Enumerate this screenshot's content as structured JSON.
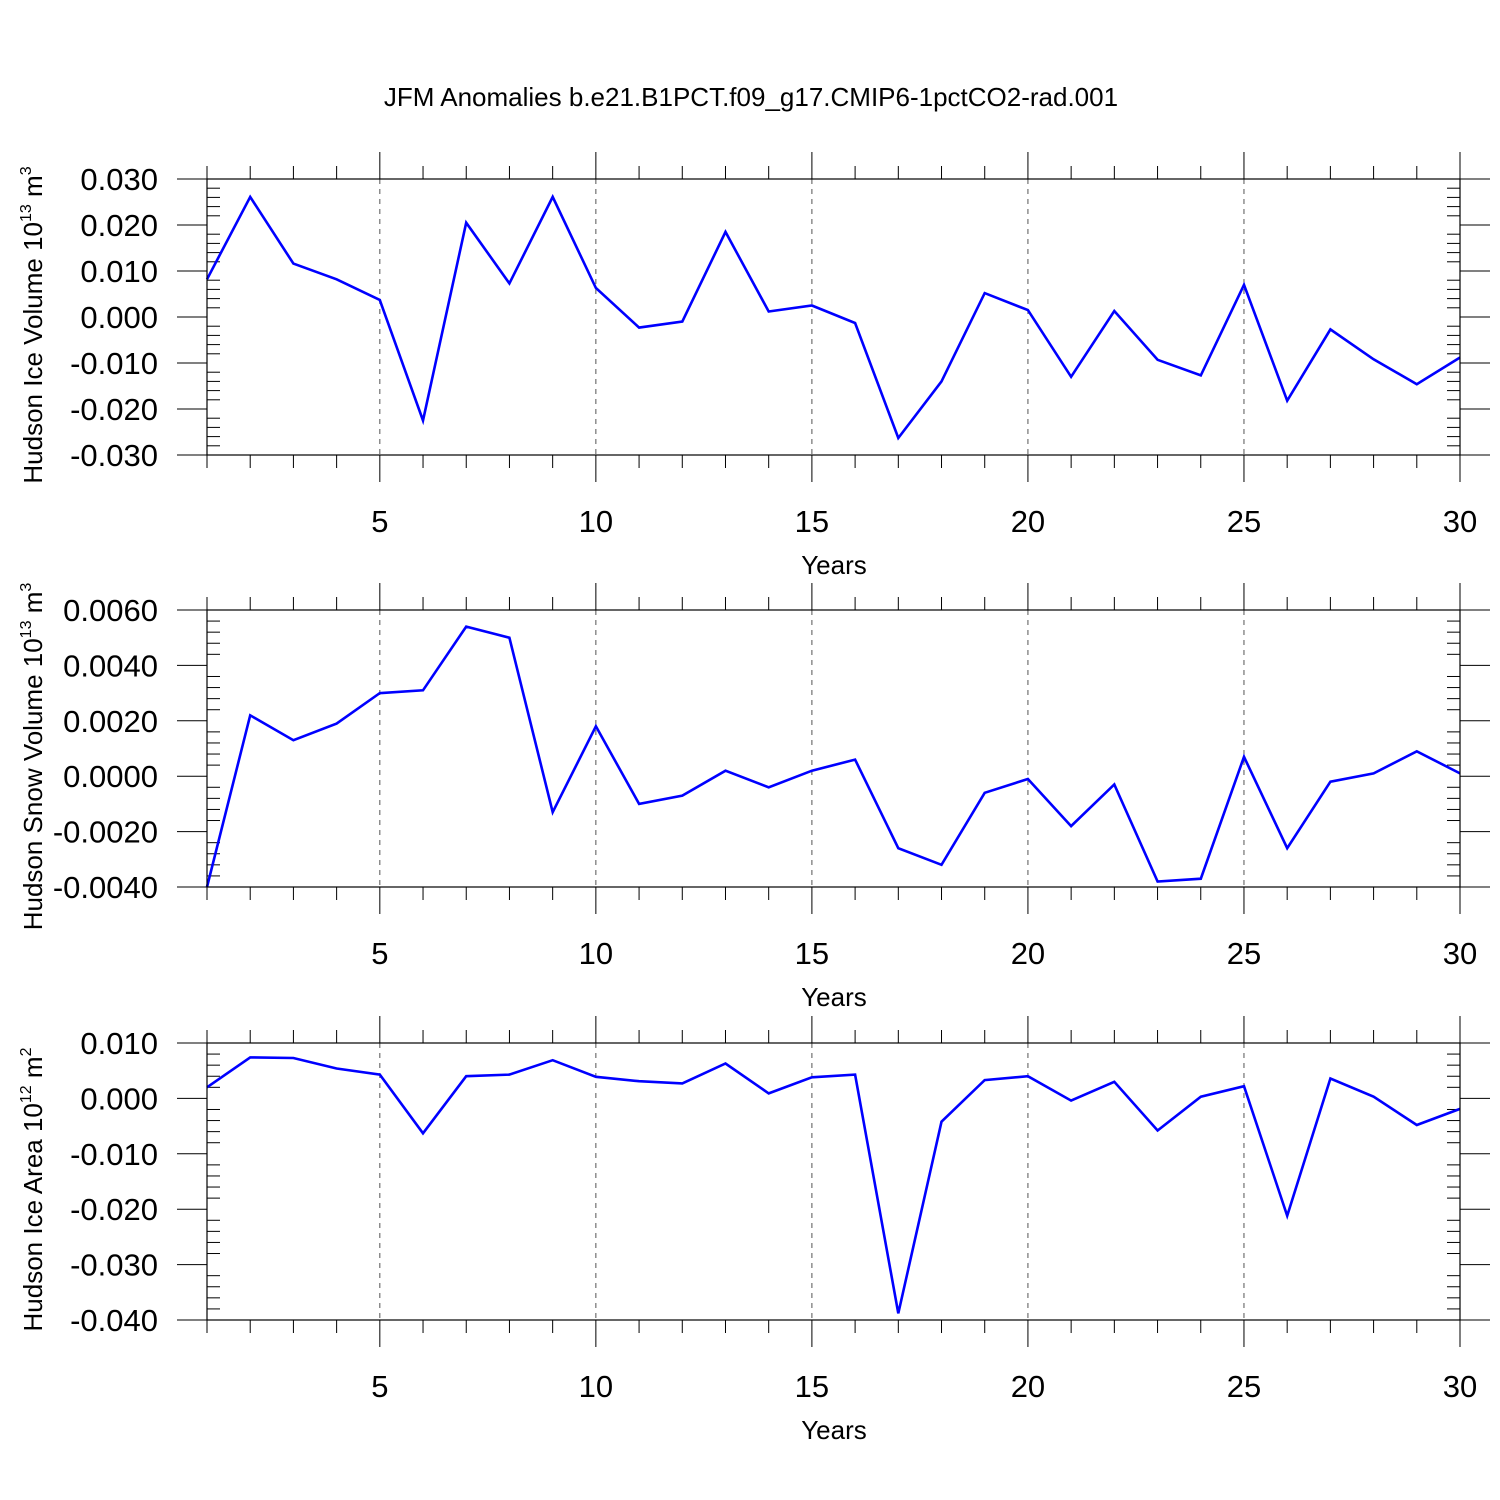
{
  "figure": {
    "title": "JFM Anomalies b.e21.B1PCT.f09_g17.CMIP6-1pctCO2-rad.001"
  },
  "chart_data": [
    {
      "type": "line",
      "xlabel": "Years",
      "ylabel": "Hudson Ice Volume 10",
      "ylabel_exponent": "13",
      "ylabel_unit": "m",
      "ylabel_unit_exponent": "3",
      "xlim": [
        1,
        30
      ],
      "ylim": [
        -0.03,
        0.03
      ],
      "x_ticks": [
        "5",
        "10",
        "15",
        "20",
        "25",
        "30"
      ],
      "x_tick_values": [
        5,
        10,
        15,
        20,
        25,
        30
      ],
      "y_ticks": [
        "0.030",
        "0.020",
        "0.010",
        "0.000",
        "-0.010",
        "-0.020",
        "-0.030"
      ],
      "y_tick_values": [
        0.03,
        0.02,
        0.01,
        0.0,
        -0.01,
        -0.02,
        -0.03
      ],
      "y_minor_step": 0.002,
      "x_grid": true,
      "color": "#0000ff",
      "x": [
        1,
        2,
        3,
        4,
        5,
        6,
        7,
        8,
        9,
        10,
        11,
        12,
        13,
        14,
        15,
        16,
        17,
        18,
        19,
        20,
        21,
        22,
        23,
        24,
        25,
        26,
        27,
        28,
        29,
        30
      ],
      "values": [
        0.0082,
        0.0261,
        0.0116,
        0.0082,
        0.0037,
        -0.0225,
        0.0205,
        0.0073,
        0.0261,
        0.0063,
        -0.0023,
        -0.001,
        0.0185,
        0.0012,
        0.0025,
        -0.0013,
        -0.0263,
        -0.014,
        0.0052,
        0.0015,
        -0.013,
        0.0013,
        -0.0093,
        -0.0127,
        0.007,
        -0.0182,
        -0.0027,
        -0.0092,
        -0.0146,
        -0.0088
      ]
    },
    {
      "type": "line",
      "xlabel": "Years",
      "ylabel": "Hudson Snow Volume 10",
      "ylabel_exponent": "13",
      "ylabel_unit": "m",
      "ylabel_unit_exponent": "3",
      "xlim": [
        1,
        30
      ],
      "ylim": [
        -0.004,
        0.006
      ],
      "x_ticks": [
        "5",
        "10",
        "15",
        "20",
        "25",
        "30"
      ],
      "x_tick_values": [
        5,
        10,
        15,
        20,
        25,
        30
      ],
      "y_ticks": [
        "0.0060",
        "0.0040",
        "0.0020",
        "0.0000",
        "-0.0020",
        "-0.0040"
      ],
      "y_tick_values": [
        0.006,
        0.004,
        0.002,
        0.0,
        -0.002,
        -0.004
      ],
      "y_minor_step": 0.0004,
      "x_grid": true,
      "color": "#0000ff",
      "x": [
        1,
        2,
        3,
        4,
        5,
        6,
        7,
        8,
        9,
        10,
        11,
        12,
        13,
        14,
        15,
        16,
        17,
        18,
        19,
        20,
        21,
        22,
        23,
        24,
        25,
        26,
        27,
        28,
        29,
        30
      ],
      "values": [
        -0.004,
        0.0022,
        0.0013,
        0.0019,
        0.003,
        0.0031,
        0.0054,
        0.005,
        -0.0013,
        0.0018,
        -0.001,
        -0.0007,
        0.0002,
        -0.0004,
        0.0002,
        0.0006,
        -0.0026,
        -0.0032,
        -0.0006,
        -0.0001,
        -0.0018,
        -0.0003,
        -0.0038,
        -0.0037,
        0.0007,
        -0.0026,
        -0.0002,
        0.0001,
        0.0009,
        0.0001
      ]
    },
    {
      "type": "line",
      "xlabel": "Years",
      "ylabel": "Hudson Ice Area 10",
      "ylabel_exponent": "12",
      "ylabel_unit": "m",
      "ylabel_unit_exponent": "2",
      "xlim": [
        1,
        30
      ],
      "ylim": [
        -0.04,
        0.01
      ],
      "x_ticks": [
        "5",
        "10",
        "15",
        "20",
        "25",
        "30"
      ],
      "x_tick_values": [
        5,
        10,
        15,
        20,
        25,
        30
      ],
      "y_ticks": [
        "0.010",
        "0.000",
        "-0.010",
        "-0.020",
        "-0.030",
        "-0.040"
      ],
      "y_tick_values": [
        0.01,
        0.0,
        -0.01,
        -0.02,
        -0.03,
        -0.04
      ],
      "y_minor_step": 0.002,
      "x_grid": true,
      "color": "#0000ff",
      "x": [
        1,
        2,
        3,
        4,
        5,
        6,
        7,
        8,
        9,
        10,
        11,
        12,
        13,
        14,
        15,
        16,
        17,
        18,
        19,
        20,
        21,
        22,
        23,
        24,
        25,
        26,
        27,
        28,
        29,
        30
      ],
      "values": [
        0.002,
        0.0074,
        0.0073,
        0.0054,
        0.0043,
        -0.0063,
        0.004,
        0.0043,
        0.0069,
        0.0039,
        0.0031,
        0.0027,
        0.0063,
        0.0009,
        0.0038,
        0.0043,
        -0.0388,
        -0.0042,
        0.0033,
        0.004,
        -0.0004,
        0.003,
        -0.0058,
        0.0003,
        0.0022,
        -0.0212,
        0.0036,
        0.0003,
        -0.0048,
        -0.0019
      ]
    }
  ]
}
